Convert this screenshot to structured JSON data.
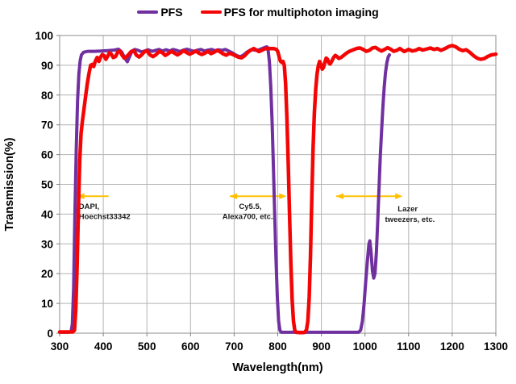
{
  "colors": {
    "background": "#ffffff",
    "grid": "#b3b3b3",
    "frame": "#a0a0a0",
    "tick": "#808080",
    "text": "#000000",
    "annotation_arrow": "#FFC000",
    "series_pfs": "#7030A0",
    "series_multiphoton": "#F40505"
  },
  "chart_data": {
    "type": "line",
    "title": "",
    "xlabel": "Wavelength(nm)",
    "ylabel": "Transmission(%)",
    "xlim": [
      300,
      1300
    ],
    "ylim": [
      0,
      100
    ],
    "xticks": [
      300,
      400,
      500,
      600,
      700,
      800,
      900,
      1000,
      1100,
      1200,
      1300
    ],
    "yticks": [
      0,
      10,
      20,
      30,
      40,
      50,
      60,
      70,
      80,
      90,
      100
    ],
    "grid": true,
    "legend_position": "top-center",
    "series": [
      {
        "name": "PFS",
        "color": "#7030A0",
        "stroke_width": 4,
        "points": [
          [
            300,
            0.3
          ],
          [
            320,
            0.3
          ],
          [
            326,
            0.5
          ],
          [
            329,
            3
          ],
          [
            332,
            15
          ],
          [
            335,
            40
          ],
          [
            338,
            62
          ],
          [
            341,
            78
          ],
          [
            344,
            87
          ],
          [
            347,
            91.5
          ],
          [
            350,
            93.5
          ],
          [
            355,
            94.4
          ],
          [
            365,
            94.7
          ],
          [
            380,
            94.7
          ],
          [
            395,
            94.8
          ],
          [
            410,
            94.9
          ],
          [
            425,
            95.1
          ],
          [
            435,
            95.4
          ],
          [
            442,
            94.5
          ],
          [
            450,
            92.3
          ],
          [
            455,
            91.2
          ],
          [
            460,
            92.8
          ],
          [
            466,
            94.8
          ],
          [
            472,
            95.3
          ],
          [
            480,
            95.0
          ],
          [
            488,
            94.5
          ],
          [
            495,
            94.8
          ],
          [
            503,
            95.2
          ],
          [
            512,
            94.7
          ],
          [
            520,
            95.0
          ],
          [
            528,
            95.3
          ],
          [
            536,
            94.8
          ],
          [
            544,
            95.2
          ],
          [
            552,
            94.8
          ],
          [
            560,
            95.3
          ],
          [
            568,
            95.0
          ],
          [
            576,
            94.6
          ],
          [
            584,
            95.1
          ],
          [
            592,
            95.4
          ],
          [
            600,
            95.0
          ],
          [
            608,
            94.7
          ],
          [
            616,
            95.1
          ],
          [
            624,
            95.3
          ],
          [
            632,
            94.8
          ],
          [
            640,
            95.1
          ],
          [
            648,
            95.3
          ],
          [
            656,
            94.9
          ],
          [
            664,
            95.2
          ],
          [
            672,
            95.0
          ],
          [
            680,
            95.3
          ],
          [
            687,
            94.8
          ],
          [
            694,
            94.3
          ],
          [
            701,
            93.7
          ],
          [
            708,
            93.1
          ],
          [
            715,
            92.9
          ],
          [
            722,
            93.5
          ],
          [
            729,
            94.4
          ],
          [
            736,
            95.0
          ],
          [
            743,
            95.2
          ],
          [
            750,
            95.0
          ],
          [
            757,
            95.2
          ],
          [
            764,
            95.6
          ],
          [
            770,
            96.0
          ],
          [
            775,
            96.2
          ],
          [
            778,
            95.0
          ],
          [
            781,
            91
          ],
          [
            784,
            83
          ],
          [
            787,
            71
          ],
          [
            790,
            56
          ],
          [
            793,
            40
          ],
          [
            796,
            25
          ],
          [
            799,
            12
          ],
          [
            802,
            4
          ],
          [
            805,
            1
          ],
          [
            808,
            0.3
          ],
          [
            850,
            0.3
          ],
          [
            900,
            0.3
          ],
          [
            950,
            0.3
          ],
          [
            985,
            0.3
          ],
          [
            990,
            1
          ],
          [
            994,
            4
          ],
          [
            998,
            10
          ],
          [
            1002,
            18
          ],
          [
            1006,
            25
          ],
          [
            1009,
            30
          ],
          [
            1011,
            31
          ],
          [
            1014,
            27
          ],
          [
            1017,
            21
          ],
          [
            1020,
            18.5
          ],
          [
            1023,
            20
          ],
          [
            1026,
            27
          ],
          [
            1029,
            37
          ],
          [
            1032,
            48
          ],
          [
            1035,
            59
          ],
          [
            1038,
            68
          ],
          [
            1041,
            76
          ],
          [
            1044,
            82.5
          ],
          [
            1047,
            87.5
          ],
          [
            1050,
            90.8
          ],
          [
            1053,
            92.7
          ],
          [
            1056,
            93.5
          ]
        ]
      },
      {
        "name": "PFS for multiphoton imaging",
        "color": "#F40505",
        "stroke_width": 4.5,
        "points": [
          [
            300,
            0.4
          ],
          [
            330,
            0.4
          ],
          [
            334,
            1
          ],
          [
            337,
            8
          ],
          [
            340,
            22
          ],
          [
            343,
            42
          ],
          [
            346,
            58
          ],
          [
            349,
            67
          ],
          [
            352,
            71
          ],
          [
            355,
            74.5
          ],
          [
            359,
            79
          ],
          [
            363,
            83.5
          ],
          [
            367,
            87
          ],
          [
            371,
            90
          ],
          [
            375,
            90.3
          ],
          [
            378,
            89.6
          ],
          [
            382,
            91.5
          ],
          [
            386,
            92.6
          ],
          [
            390,
            91.3
          ],
          [
            394,
            92.8
          ],
          [
            398,
            93.6
          ],
          [
            402,
            93.2
          ],
          [
            406,
            92.0
          ],
          [
            410,
            93.0
          ],
          [
            414,
            94.2
          ],
          [
            418,
            93.8
          ],
          [
            423,
            92.6
          ],
          [
            428,
            92.9
          ],
          [
            433,
            94.4
          ],
          [
            438,
            94.8
          ],
          [
            443,
            93.4
          ],
          [
            448,
            92.4
          ],
          [
            453,
            92.9
          ],
          [
            458,
            93.6
          ],
          [
            464,
            94.6
          ],
          [
            470,
            94.9
          ],
          [
            476,
            93.4
          ],
          [
            482,
            92.8
          ],
          [
            488,
            93.5
          ],
          [
            494,
            94.5
          ],
          [
            500,
            94.9
          ],
          [
            507,
            93.5
          ],
          [
            514,
            92.9
          ],
          [
            521,
            93.6
          ],
          [
            528,
            94.6
          ],
          [
            535,
            94.3
          ],
          [
            542,
            93.3
          ],
          [
            549,
            93.9
          ],
          [
            556,
            94.7
          ],
          [
            563,
            94.1
          ],
          [
            570,
            93.5
          ],
          [
            577,
            94.1
          ],
          [
            584,
            94.9
          ],
          [
            591,
            94.3
          ],
          [
            598,
            93.7
          ],
          [
            605,
            94.2
          ],
          [
            612,
            94.8
          ],
          [
            619,
            94.1
          ],
          [
            626,
            93.6
          ],
          [
            633,
            94.1
          ],
          [
            640,
            94.7
          ],
          [
            647,
            93.9
          ],
          [
            654,
            94.4
          ],
          [
            661,
            95.0
          ],
          [
            668,
            94.5
          ],
          [
            675,
            93.8
          ],
          [
            682,
            93.4
          ],
          [
            689,
            94.0
          ],
          [
            696,
            93.7
          ],
          [
            703,
            93.2
          ],
          [
            710,
            92.7
          ],
          [
            717,
            92.5
          ],
          [
            724,
            93.2
          ],
          [
            731,
            94.3
          ],
          [
            738,
            95.1
          ],
          [
            745,
            95.6
          ],
          [
            751,
            95.1
          ],
          [
            757,
            94.6
          ],
          [
            763,
            95.0
          ],
          [
            770,
            95.5
          ],
          [
            777,
            95.7
          ],
          [
            784,
            95.6
          ],
          [
            791,
            95.6
          ],
          [
            797,
            95.3
          ],
          [
            800,
            94.6
          ],
          [
            803,
            93.0
          ],
          [
            806,
            91.4
          ],
          [
            809,
            91.0
          ],
          [
            812,
            91.3
          ],
          [
            815,
            90.0
          ],
          [
            818,
            84
          ],
          [
            821,
            72
          ],
          [
            824,
            57
          ],
          [
            827,
            40
          ],
          [
            830,
            24
          ],
          [
            833,
            11
          ],
          [
            836,
            4
          ],
          [
            839,
            1
          ],
          [
            842,
            0.3
          ],
          [
            850,
            0.2
          ],
          [
            858,
            0.2
          ],
          [
            862,
            0.3
          ],
          [
            866,
            1.2
          ],
          [
            869,
            4
          ],
          [
            872,
            12
          ],
          [
            875,
            26
          ],
          [
            878,
            45
          ],
          [
            881,
            62
          ],
          [
            884,
            74
          ],
          [
            887,
            82
          ],
          [
            890,
            87
          ],
          [
            893,
            89.8
          ],
          [
            896,
            91.3
          ],
          [
            899,
            90.2
          ],
          [
            902,
            88.7
          ],
          [
            905,
            89.3
          ],
          [
            908,
            91.0
          ],
          [
            911,
            92.4
          ],
          [
            914,
            92.0
          ],
          [
            917,
            90.8
          ],
          [
            920,
            90.4
          ],
          [
            924,
            91.4
          ],
          [
            928,
            92.6
          ],
          [
            932,
            93.3
          ],
          [
            936,
            92.9
          ],
          [
            940,
            92.3
          ],
          [
            945,
            92.6
          ],
          [
            950,
            93.2
          ],
          [
            956,
            93.9
          ],
          [
            962,
            94.5
          ],
          [
            968,
            94.9
          ],
          [
            975,
            95.3
          ],
          [
            982,
            95.7
          ],
          [
            989,
            95.8
          ],
          [
            996,
            95.3
          ],
          [
            1003,
            94.7
          ],
          [
            1010,
            95.0
          ],
          [
            1017,
            95.8
          ],
          [
            1024,
            96.0
          ],
          [
            1031,
            95.3
          ],
          [
            1038,
            94.8
          ],
          [
            1045,
            95.3
          ],
          [
            1052,
            95.9
          ],
          [
            1059,
            95.4
          ],
          [
            1066,
            94.7
          ],
          [
            1073,
            95.0
          ],
          [
            1080,
            95.6
          ],
          [
            1090,
            94.6
          ],
          [
            1100,
            95.3
          ],
          [
            1108,
            94.8
          ],
          [
            1116,
            95.0
          ],
          [
            1124,
            95.6
          ],
          [
            1132,
            95.1
          ],
          [
            1140,
            95.4
          ],
          [
            1150,
            95.8
          ],
          [
            1158,
            95.3
          ],
          [
            1166,
            95.6
          ],
          [
            1174,
            95.0
          ],
          [
            1182,
            95.5
          ],
          [
            1192,
            96.3
          ],
          [
            1200,
            96.6
          ],
          [
            1208,
            96.2
          ],
          [
            1216,
            95.4
          ],
          [
            1224,
            94.9
          ],
          [
            1232,
            95.2
          ],
          [
            1240,
            94.4
          ],
          [
            1250,
            93.1
          ],
          [
            1258,
            92.3
          ],
          [
            1266,
            92.0
          ],
          [
            1274,
            92.3
          ],
          [
            1282,
            93.0
          ],
          [
            1290,
            93.5
          ],
          [
            1300,
            93.7
          ]
        ]
      }
    ],
    "annotations": [
      {
        "name": "dapi-annotation",
        "arrow": {
          "x_from": 412,
          "x_to": 340,
          "y": 46,
          "double": false
        },
        "lines": [
          {
            "text": "DAPI,",
            "x": 344,
            "y": 41.8,
            "anchor": "start"
          },
          {
            "text": "Hoechst33342",
            "x": 344,
            "y": 38.4,
            "anchor": "start"
          }
        ]
      },
      {
        "name": "cy55-annotation",
        "arrow": {
          "x_from": 690,
          "x_to": 820,
          "y": 46,
          "double": true
        },
        "lines": [
          {
            "text": "Cy5.5,",
            "x": 737,
            "y": 41.8,
            "anchor": "middle"
          },
          {
            "text": "Alexa700, etc.",
            "x": 731,
            "y": 38.4,
            "anchor": "middle"
          }
        ]
      },
      {
        "name": "lazer-annotation",
        "arrow": {
          "x_from": 934,
          "x_to": 1086,
          "y": 46,
          "double": true
        },
        "lines": [
          {
            "text": "Lazer",
            "x": 1098,
            "y": 40.9,
            "anchor": "middle"
          },
          {
            "text": "tweezers, etc.",
            "x": 1103,
            "y": 37.4,
            "anchor": "middle"
          }
        ]
      }
    ]
  }
}
